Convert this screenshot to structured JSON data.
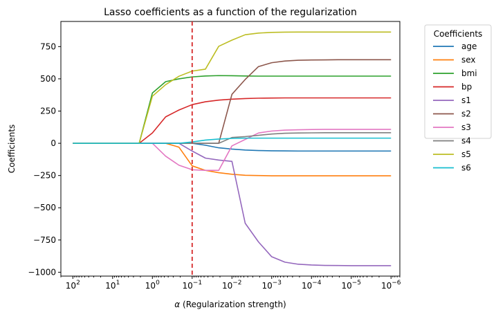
{
  "chart_data": {
    "type": "line",
    "title": "Lasso coefficients as a function of the regularization",
    "xlabel_symbol": "α",
    "xlabel_text": "(Regularization strength)",
    "ylabel": "Coefficients",
    "xscale": "log",
    "x_reversed": true,
    "xlim": [
      200,
      6e-07
    ],
    "ylim": [
      -1030,
      945
    ],
    "x_ticks": [
      {
        "base": "10",
        "exp": "2",
        "value": 100
      },
      {
        "base": "10",
        "exp": "1",
        "value": 10
      },
      {
        "base": "10",
        "exp": "0",
        "value": 1
      },
      {
        "base": "10",
        "exp": "−1",
        "value": 0.1
      },
      {
        "base": "10",
        "exp": "−2",
        "value": 0.01
      },
      {
        "base": "10",
        "exp": "−3",
        "value": 0.001
      },
      {
        "base": "10",
        "exp": "−4",
        "value": 0.0001
      },
      {
        "base": "10",
        "exp": "−5",
        "value": 1e-05
      },
      {
        "base": "10",
        "exp": "−6",
        "value": 1e-06
      }
    ],
    "y_ticks": [
      {
        "label": "750",
        "value": 750
      },
      {
        "label": "500",
        "value": 500
      },
      {
        "label": "250",
        "value": 250
      },
      {
        "label": "0",
        "value": 0
      },
      {
        "label": "−250",
        "value": -250
      },
      {
        "label": "−500",
        "value": -500
      },
      {
        "label": "−750",
        "value": -750
      },
      {
        "label": "−1000",
        "value": -1000
      }
    ],
    "vline": {
      "x": 0.1,
      "color": "#d62728",
      "style": "dashed"
    },
    "legend": {
      "title": "Coefficients",
      "placement": "outside-right-top"
    },
    "x": [
      100,
      46.4,
      21.5,
      10,
      4.64,
      2.15,
      1,
      0.464,
      0.215,
      0.1,
      0.0464,
      0.0215,
      0.01,
      0.00464,
      0.00215,
      0.001,
      0.000464,
      0.000215,
      0.0001,
      4.64e-05,
      2.15e-05,
      1e-05,
      4.64e-06,
      2.15e-06,
      1e-06
    ],
    "series": [
      {
        "name": "age",
        "color": "#1f77b4",
        "values": [
          0,
          0,
          0,
          0,
          0,
          0,
          0,
          0,
          0,
          0,
          -15,
          -35,
          -45,
          -52,
          -56,
          -58,
          -59,
          -60,
          -60,
          -60,
          -60,
          -60,
          -60,
          -60,
          -60
        ]
      },
      {
        "name": "sex",
        "color": "#ff7f0e",
        "values": [
          0,
          0,
          0,
          0,
          0,
          0,
          0,
          0,
          -30,
          -175,
          -210,
          -228,
          -240,
          -248,
          -250,
          -252,
          -252,
          -252,
          -252,
          -252,
          -252,
          -252,
          -252,
          -252,
          -252
        ]
      },
      {
        "name": "bmi",
        "color": "#2ca02c",
        "values": [
          0,
          0,
          0,
          0,
          0,
          0,
          390,
          478,
          500,
          515,
          522,
          525,
          524,
          522,
          521,
          521,
          521,
          521,
          521,
          521,
          521,
          521,
          521,
          521,
          521
        ]
      },
      {
        "name": "bp",
        "color": "#d62728",
        "values": [
          0,
          0,
          0,
          0,
          0,
          0,
          80,
          205,
          258,
          300,
          322,
          335,
          342,
          347,
          350,
          351,
          352,
          352,
          352,
          352,
          352,
          352,
          352,
          352,
          352
        ]
      },
      {
        "name": "s1",
        "color": "#9467bd",
        "values": [
          0,
          0,
          0,
          0,
          0,
          0,
          0,
          0,
          0,
          -60,
          -115,
          -130,
          -140,
          -620,
          -765,
          -880,
          -922,
          -938,
          -944,
          -947,
          -948,
          -949,
          -949,
          -949,
          -949
        ]
      },
      {
        "name": "s2",
        "color": "#8c564b",
        "values": [
          0,
          0,
          0,
          0,
          0,
          0,
          0,
          0,
          0,
          0,
          0,
          0,
          380,
          495,
          595,
          625,
          638,
          644,
          646,
          647,
          648,
          648,
          648,
          648,
          648
        ]
      },
      {
        "name": "s3",
        "color": "#e377c2",
        "values": [
          0,
          0,
          0,
          0,
          0,
          0,
          0,
          -100,
          -170,
          -205,
          -210,
          -210,
          -20,
          30,
          80,
          95,
          102,
          105,
          107,
          108,
          108,
          108,
          108,
          108,
          108
        ]
      },
      {
        "name": "s4",
        "color": "#7f7f7f",
        "values": [
          0,
          0,
          0,
          0,
          0,
          0,
          0,
          0,
          0,
          0,
          0,
          0,
          45,
          52,
          62,
          72,
          78,
          80,
          81,
          82,
          82,
          82,
          82,
          82,
          82
        ]
      },
      {
        "name": "s5",
        "color": "#bcbd22",
        "values": [
          0,
          0,
          0,
          0,
          0,
          0,
          365,
          455,
          520,
          560,
          575,
          752,
          800,
          842,
          855,
          860,
          862,
          863,
          863,
          863,
          863,
          863,
          863,
          863,
          863
        ]
      },
      {
        "name": "s6",
        "color": "#17becf",
        "values": [
          0,
          0,
          0,
          0,
          0,
          0,
          0,
          0,
          0,
          10,
          25,
          33,
          38,
          40,
          40,
          40,
          40,
          40,
          40,
          40,
          40,
          40,
          40,
          40,
          40
        ]
      }
    ]
  }
}
